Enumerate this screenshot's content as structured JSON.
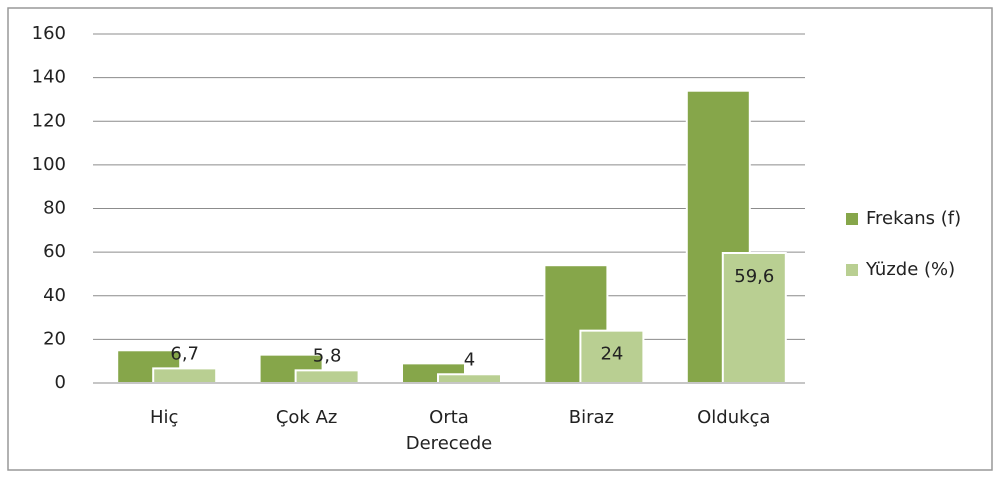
{
  "chart_data": {
    "type": "bar",
    "categories": [
      "Hiç",
      "Çok Az",
      "Orta Derecede",
      "Biraz",
      "Oldukça"
    ],
    "series": [
      {
        "name": "Frekans (f)",
        "color": "#86a64a",
        "values": [
          15,
          13,
          9,
          54,
          134
        ]
      },
      {
        "name": "Yüzde (%)",
        "color": "#b9cf92",
        "values": [
          6.7,
          5.8,
          4,
          24,
          59.6
        ],
        "value_labels": [
          "6,7",
          "5,8",
          "4",
          "24",
          "59,6"
        ]
      }
    ],
    "ylim": [
      0,
      160
    ],
    "yticks": [
      0,
      20,
      40,
      60,
      80,
      100,
      120,
      140,
      160
    ],
    "grid": true,
    "legend": "right"
  }
}
